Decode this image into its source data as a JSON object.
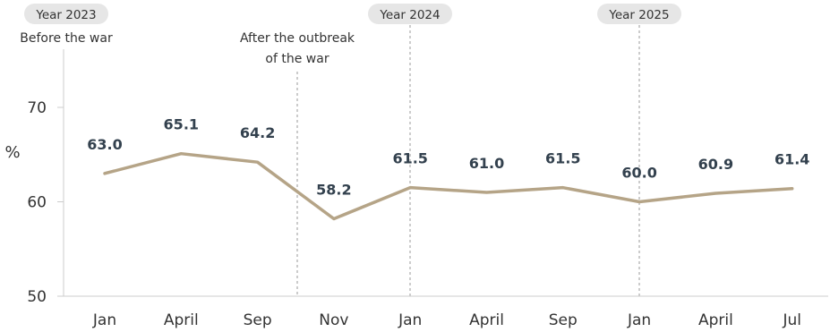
{
  "chart_data": {
    "type": "line",
    "categories": [
      "Jan",
      "April",
      "Sep",
      "Nov",
      "Jan",
      "April",
      "Sep",
      "Jan",
      "April",
      "Jul"
    ],
    "series": [
      {
        "values": [
          63.0,
          65.1,
          64.2,
          58.2,
          61.5,
          61.0,
          61.5,
          60.0,
          60.9,
          61.4
        ]
      }
    ],
    "data_labels": [
      "63.0",
      "65.1",
      "64.2",
      "58.2",
      "61.5",
      "61.0",
      "61.5",
      "60.0",
      "60.9",
      "61.4"
    ],
    "ylabel": "%",
    "ylim": [
      50,
      70
    ],
    "yticks": [
      "50",
      "60",
      "70"
    ],
    "grid": false,
    "line_color": "#b5a487",
    "annotations": {
      "year_2023": "Year 2023",
      "before_war": "Before the war",
      "after_outbreak_line1": "After the outbreak",
      "after_outbreak_line2": "of the war",
      "year_2024": "Year 2024",
      "year_2025": "Year 2025"
    }
  }
}
